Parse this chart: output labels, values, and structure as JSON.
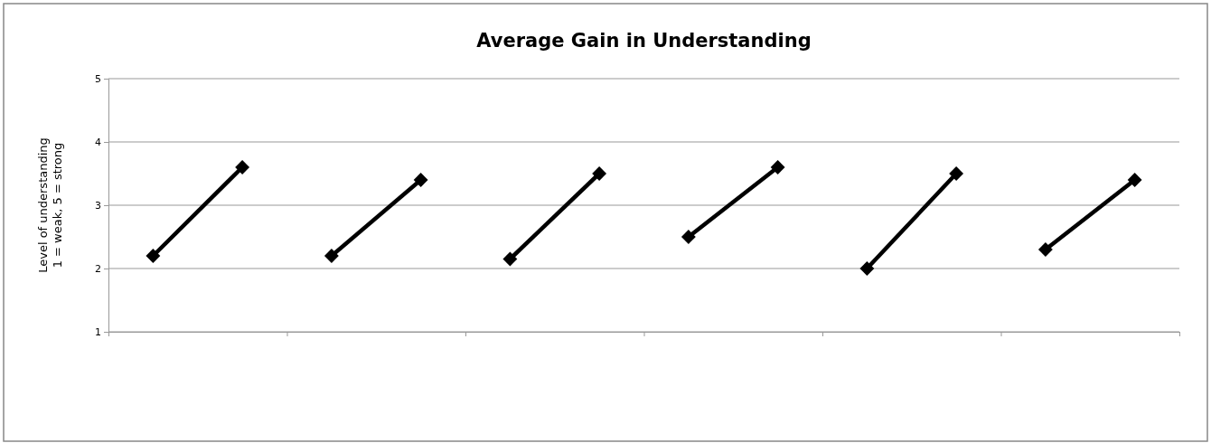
{
  "chart_data": {
    "type": "line",
    "title": "Average Gain in Understanding",
    "ylabel": "Level of understanding\n1 = weak, 5 = strong",
    "categories": [
      null,
      null,
      null,
      null,
      null,
      null,
      null,
      null,
      null,
      null,
      null,
      null
    ],
    "series": [
      {
        "color": "#000000",
        "values": [
          2.2,
          3.6,
          null,
          null,
          null,
          null,
          null,
          null,
          null,
          null,
          null,
          null
        ]
      },
      {
        "color": "#000000",
        "values": [
          null,
          null,
          2.2,
          3.4,
          null,
          null,
          null,
          null,
          null,
          null,
          null,
          null
        ]
      },
      {
        "color": "#000000",
        "values": [
          null,
          null,
          null,
          null,
          2.15,
          3.5,
          null,
          null,
          null,
          null,
          null,
          null
        ]
      },
      {
        "color": "#000000",
        "values": [
          null,
          null,
          null,
          null,
          null,
          null,
          2.5,
          3.6,
          null,
          null,
          null,
          null
        ]
      },
      {
        "color": "#000000",
        "values": [
          null,
          null,
          null,
          null,
          null,
          null,
          null,
          null,
          2.0,
          3.5,
          null,
          null
        ]
      },
      {
        "color": "#000000",
        "values": [
          null,
          null,
          null,
          null,
          null,
          null,
          null,
          null,
          null,
          null,
          2.3,
          3.4
        ]
      }
    ],
    "ylim": [
      1,
      5
    ],
    "yticks": [
      1,
      2,
      3,
      4,
      5
    ],
    "grid": "y",
    "marker": "diamond",
    "line_style": "solid"
  }
}
